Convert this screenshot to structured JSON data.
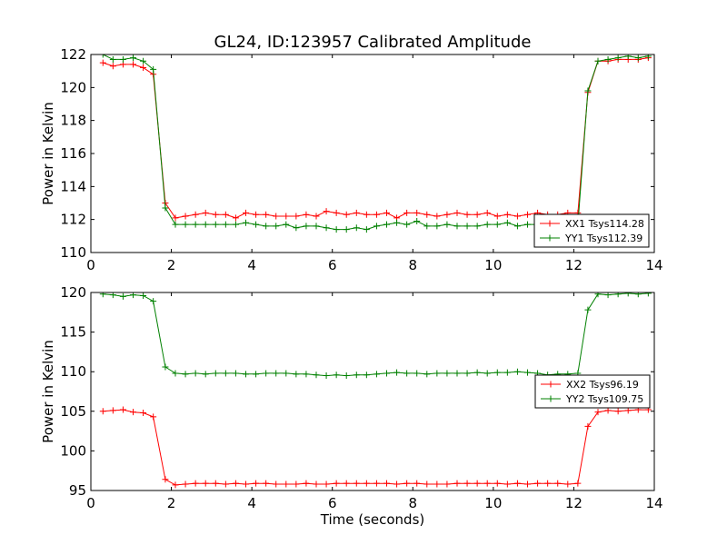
{
  "title": "GL24, ID:123957 Calibrated Amplitude",
  "chart_data": [
    {
      "type": "line",
      "ylabel": "Power in Kelvin",
      "xlabel": "",
      "xlim": [
        0,
        14
      ],
      "ylim": [
        110,
        122
      ],
      "xticks": [
        "0",
        "2",
        "4",
        "6",
        "8",
        "10",
        "12",
        "14"
      ],
      "yticks": [
        "110",
        "112",
        "114",
        "116",
        "118",
        "120",
        "122"
      ],
      "legend": "lower-right",
      "x": [
        0.3,
        0.55,
        0.8,
        1.05,
        1.3,
        1.55,
        1.85,
        2.1,
        2.35,
        2.6,
        2.85,
        3.1,
        3.35,
        3.6,
        3.85,
        4.1,
        4.35,
        4.6,
        4.85,
        5.1,
        5.35,
        5.6,
        5.85,
        6.1,
        6.35,
        6.6,
        6.85,
        7.1,
        7.35,
        7.6,
        7.85,
        8.1,
        8.35,
        8.6,
        8.85,
        9.1,
        9.35,
        9.6,
        9.85,
        10.1,
        10.35,
        10.6,
        10.85,
        11.1,
        11.35,
        11.6,
        11.85,
        12.1,
        12.35,
        12.6,
        12.85,
        13.1,
        13.35,
        13.6,
        13.85
      ],
      "series": [
        {
          "name": "XX1 Tsys114.28",
          "color": "#ff0000",
          "values": [
            121.5,
            121.3,
            121.4,
            121.4,
            121.2,
            120.8,
            113.0,
            112.1,
            112.2,
            112.3,
            112.4,
            112.3,
            112.3,
            112.1,
            112.4,
            112.3,
            112.3,
            112.2,
            112.2,
            112.2,
            112.3,
            112.2,
            112.5,
            112.4,
            112.3,
            112.4,
            112.3,
            112.3,
            112.4,
            112.1,
            112.4,
            112.4,
            112.3,
            112.2,
            112.3,
            112.4,
            112.3,
            112.3,
            112.4,
            112.2,
            112.3,
            112.2,
            112.3,
            112.4,
            112.3,
            112.3,
            112.4,
            112.4,
            119.7,
            121.6,
            121.6,
            121.7,
            121.7,
            121.7,
            121.8
          ]
        },
        {
          "name": "YY1 Tsys112.39",
          "color": "#008000",
          "values": [
            122.0,
            121.7,
            121.7,
            121.8,
            121.6,
            121.1,
            112.7,
            111.7,
            111.7,
            111.7,
            111.7,
            111.7,
            111.7,
            111.7,
            111.8,
            111.7,
            111.6,
            111.6,
            111.7,
            111.5,
            111.6,
            111.6,
            111.5,
            111.4,
            111.4,
            111.5,
            111.4,
            111.6,
            111.7,
            111.8,
            111.7,
            111.9,
            111.6,
            111.6,
            111.7,
            111.6,
            111.6,
            111.6,
            111.7,
            111.7,
            111.8,
            111.6,
            111.7,
            111.7,
            111.6,
            111.6,
            111.7,
            111.7,
            119.8,
            121.6,
            121.7,
            121.8,
            121.9,
            121.8,
            121.9
          ]
        }
      ]
    },
    {
      "type": "line",
      "ylabel": "Power in Kelvin",
      "xlabel": "Time (seconds)",
      "xlim": [
        0,
        14
      ],
      "ylim": [
        95,
        120
      ],
      "xticks": [
        "0",
        "2",
        "4",
        "6",
        "8",
        "10",
        "12",
        "14"
      ],
      "yticks": [
        "95",
        "100",
        "105",
        "110",
        "115",
        "120"
      ],
      "legend": "right",
      "x": [
        0.3,
        0.55,
        0.8,
        1.05,
        1.3,
        1.55,
        1.85,
        2.1,
        2.35,
        2.6,
        2.85,
        3.1,
        3.35,
        3.6,
        3.85,
        4.1,
        4.35,
        4.6,
        4.85,
        5.1,
        5.35,
        5.6,
        5.85,
        6.1,
        6.35,
        6.6,
        6.85,
        7.1,
        7.35,
        7.6,
        7.85,
        8.1,
        8.35,
        8.6,
        8.85,
        9.1,
        9.35,
        9.6,
        9.85,
        10.1,
        10.35,
        10.6,
        10.85,
        11.1,
        11.35,
        11.6,
        11.85,
        12.1,
        12.35,
        12.6,
        12.85,
        13.1,
        13.35,
        13.6,
        13.85
      ],
      "series": [
        {
          "name": "XX2 Tsys96.19",
          "color": "#ff0000",
          "values": [
            105.0,
            105.1,
            105.2,
            104.9,
            104.8,
            104.3,
            96.4,
            95.7,
            95.8,
            95.9,
            95.9,
            95.9,
            95.8,
            95.9,
            95.8,
            95.9,
            95.9,
            95.8,
            95.8,
            95.8,
            95.9,
            95.8,
            95.8,
            95.9,
            95.9,
            95.9,
            95.9,
            95.9,
            95.9,
            95.8,
            95.9,
            95.9,
            95.8,
            95.8,
            95.8,
            95.9,
            95.9,
            95.9,
            95.9,
            95.9,
            95.8,
            95.9,
            95.8,
            95.9,
            95.9,
            95.9,
            95.8,
            95.9,
            103.1,
            104.9,
            105.1,
            105.0,
            105.1,
            105.2,
            105.2
          ]
        },
        {
          "name": "YY2 Tsys109.75",
          "color": "#008000",
          "values": [
            119.8,
            119.7,
            119.5,
            119.7,
            119.6,
            118.9,
            110.6,
            109.8,
            109.7,
            109.8,
            109.7,
            109.8,
            109.8,
            109.8,
            109.7,
            109.7,
            109.8,
            109.8,
            109.8,
            109.7,
            109.7,
            109.6,
            109.5,
            109.6,
            109.5,
            109.6,
            109.6,
            109.7,
            109.8,
            109.9,
            109.8,
            109.8,
            109.7,
            109.8,
            109.8,
            109.8,
            109.8,
            109.9,
            109.8,
            109.9,
            109.9,
            110.0,
            109.9,
            109.8,
            109.6,
            109.7,
            109.7,
            109.8,
            117.8,
            119.8,
            119.7,
            119.8,
            119.9,
            119.8,
            119.9
          ]
        }
      ]
    }
  ]
}
